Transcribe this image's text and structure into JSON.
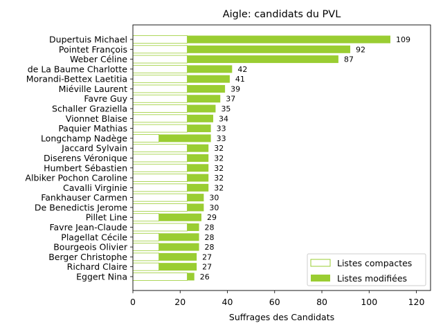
{
  "chart_data": {
    "type": "bar",
    "orientation": "horizontal",
    "stacked": true,
    "title": "Aigle: candidats du PVL",
    "xlabel": "Suffrages des Candidats",
    "ylabel": "",
    "xlim": [
      0,
      126
    ],
    "xticks": [
      0,
      20,
      40,
      60,
      80,
      100,
      120
    ],
    "grid": false,
    "legend_position": "lower-right",
    "colors": {
      "compact_edge": "#9acd32",
      "modified_fill": "#9acd32"
    },
    "categories": [
      "Dupertuis Michael",
      "Pointet François",
      "Weber Céline",
      "de La Baume Charlotte",
      "Morandi-Bettex Laetitia",
      "Miéville Laurent",
      "Favre Guy",
      "Schaller Graziella",
      "Vionnet Blaise",
      "Paquier Mathias",
      "Longchamp Nadège",
      "Jaccard Sylvain",
      "Diserens Véronique",
      "Humbert Sébastien",
      "Albiker Pochon Caroline",
      "Cavalli Virginie",
      "Fankhauser Carmen",
      "De Benedictis Jerome",
      "Pillet Line",
      "Favre Jean-Claude",
      "Plagellat Cécile",
      "Bourgeois Olivier",
      "Berger Christophe",
      "Richard Claire",
      "Eggert Nina"
    ],
    "totals": [
      109,
      92,
      87,
      42,
      41,
      39,
      37,
      35,
      34,
      33,
      33,
      32,
      32,
      32,
      32,
      32,
      30,
      30,
      29,
      28,
      28,
      28,
      27,
      27,
      26
    ],
    "series": [
      {
        "name": "Listes compactes",
        "values": [
          23,
          23,
          23,
          23,
          23,
          23,
          23,
          23,
          23,
          23,
          11,
          23,
          23,
          23,
          23,
          23,
          23,
          23,
          11,
          23,
          11,
          11,
          11,
          11,
          23
        ]
      },
      {
        "name": "Listes modifiées",
        "values": [
          86,
          69,
          64,
          19,
          18,
          16,
          14,
          12,
          11,
          10,
          22,
          9,
          9,
          9,
          9,
          9,
          7,
          7,
          18,
          5,
          17,
          17,
          16,
          16,
          3
        ]
      }
    ]
  }
}
